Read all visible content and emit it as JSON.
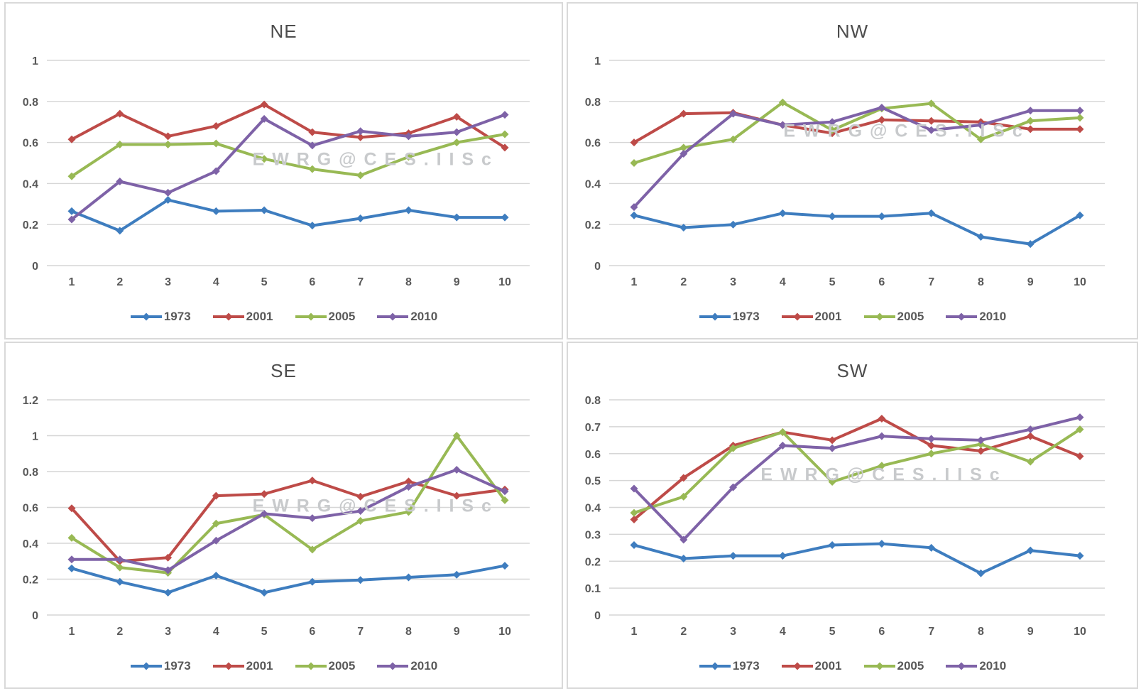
{
  "watermark": {
    "text": "E W R G @ C E S . I I S c",
    "color": "#c8cacc"
  },
  "style": {
    "grid_color": "#d6d6d6",
    "text_color": "#595959",
    "panel_border_color": "#d9d9d9",
    "series_colors": {
      "1973": "#3E7DBF",
      "2001": "#BE4B48",
      "2005": "#98B954",
      "2010": "#7E62A7"
    }
  },
  "chart_data": [
    {
      "type": "line",
      "title": "NE",
      "x": [
        1,
        2,
        3,
        4,
        5,
        6,
        7,
        8,
        9,
        10
      ],
      "xlabel": "",
      "ylabel": "",
      "ylim": [
        0,
        1
      ],
      "yticks": [
        0,
        0.2,
        0.4,
        0.6,
        0.8,
        1
      ],
      "grid": true,
      "legend_position": "bottom",
      "series": [
        {
          "name": "1973",
          "color": "#3E7DBF",
          "values": [
            0.265,
            0.17,
            0.32,
            0.265,
            0.27,
            0.195,
            0.23,
            0.27,
            0.235,
            0.235
          ]
        },
        {
          "name": "2001",
          "color": "#BE4B48",
          "values": [
            0.615,
            0.74,
            0.63,
            0.68,
            0.785,
            0.65,
            0.625,
            0.645,
            0.725,
            0.575
          ]
        },
        {
          "name": "2005",
          "color": "#98B954",
          "values": [
            0.435,
            0.59,
            0.59,
            0.595,
            0.52,
            0.47,
            0.44,
            0.53,
            0.6,
            0.64
          ]
        },
        {
          "name": "2010",
          "color": "#7E62A7",
          "values": [
            0.225,
            0.41,
            0.355,
            0.46,
            0.715,
            0.585,
            0.655,
            0.63,
            0.65,
            0.735
          ]
        }
      ]
    },
    {
      "type": "line",
      "title": "NW",
      "x": [
        1,
        2,
        3,
        4,
        5,
        6,
        7,
        8,
        9,
        10
      ],
      "xlabel": "",
      "ylabel": "",
      "ylim": [
        0,
        1
      ],
      "yticks": [
        0,
        0.2,
        0.4,
        0.6,
        0.8,
        1
      ],
      "grid": true,
      "legend_position": "bottom",
      "series": [
        {
          "name": "1973",
          "color": "#3E7DBF",
          "values": [
            0.245,
            0.185,
            0.2,
            0.255,
            0.24,
            0.24,
            0.255,
            0.14,
            0.105,
            0.245
          ]
        },
        {
          "name": "2001",
          "color": "#BE4B48",
          "values": [
            0.6,
            0.74,
            0.745,
            0.685,
            0.645,
            0.71,
            0.705,
            0.7,
            0.665,
            0.665
          ]
        },
        {
          "name": "2005",
          "color": "#98B954",
          "values": [
            0.5,
            0.575,
            0.615,
            0.795,
            0.66,
            0.765,
            0.79,
            0.615,
            0.705,
            0.72
          ]
        },
        {
          "name": "2010",
          "color": "#7E62A7",
          "values": [
            0.285,
            0.545,
            0.74,
            0.685,
            0.7,
            0.77,
            0.66,
            0.685,
            0.755,
            0.755
          ]
        }
      ]
    },
    {
      "type": "line",
      "title": "SE",
      "x": [
        1,
        2,
        3,
        4,
        5,
        6,
        7,
        8,
        9,
        10
      ],
      "xlabel": "",
      "ylabel": "",
      "ylim": [
        0,
        1.2
      ],
      "yticks": [
        0,
        0.2,
        0.4,
        0.6,
        0.8,
        1,
        1.2
      ],
      "grid": true,
      "legend_position": "bottom",
      "series": [
        {
          "name": "1973",
          "color": "#3E7DBF",
          "values": [
            0.26,
            0.185,
            0.125,
            0.22,
            0.125,
            0.185,
            0.195,
            0.21,
            0.225,
            0.275
          ]
        },
        {
          "name": "2001",
          "color": "#BE4B48",
          "values": [
            0.595,
            0.3,
            0.32,
            0.665,
            0.675,
            0.75,
            0.66,
            0.745,
            0.665,
            0.7
          ]
        },
        {
          "name": "2005",
          "color": "#98B954",
          "values": [
            0.43,
            0.265,
            0.235,
            0.51,
            0.56,
            0.365,
            0.525,
            0.575,
            1.0,
            0.64
          ]
        },
        {
          "name": "2010",
          "color": "#7E62A7",
          "values": [
            0.31,
            0.31,
            0.25,
            0.415,
            0.565,
            0.54,
            0.58,
            0.715,
            0.81,
            0.69
          ]
        }
      ]
    },
    {
      "type": "line",
      "title": "SW",
      "x": [
        1,
        2,
        3,
        4,
        5,
        6,
        7,
        8,
        9,
        10
      ],
      "xlabel": "",
      "ylabel": "",
      "ylim": [
        0,
        0.8
      ],
      "yticks": [
        0,
        0.1,
        0.2,
        0.3,
        0.4,
        0.5,
        0.6,
        0.7,
        0.8
      ],
      "grid": true,
      "legend_position": "bottom",
      "series": [
        {
          "name": "1973",
          "color": "#3E7DBF",
          "values": [
            0.26,
            0.21,
            0.22,
            0.22,
            0.26,
            0.265,
            0.25,
            0.155,
            0.24,
            0.22
          ]
        },
        {
          "name": "2001",
          "color": "#BE4B48",
          "values": [
            0.355,
            0.51,
            0.63,
            0.68,
            0.65,
            0.73,
            0.63,
            0.61,
            0.665,
            0.59
          ]
        },
        {
          "name": "2005",
          "color": "#98B954",
          "values": [
            0.38,
            0.44,
            0.62,
            0.68,
            0.495,
            0.555,
            0.6,
            0.635,
            0.57,
            0.69
          ]
        },
        {
          "name": "2010",
          "color": "#7E62A7",
          "values": [
            0.47,
            0.28,
            0.475,
            0.63,
            0.62,
            0.665,
            0.655,
            0.65,
            0.69,
            0.735
          ]
        }
      ]
    }
  ]
}
